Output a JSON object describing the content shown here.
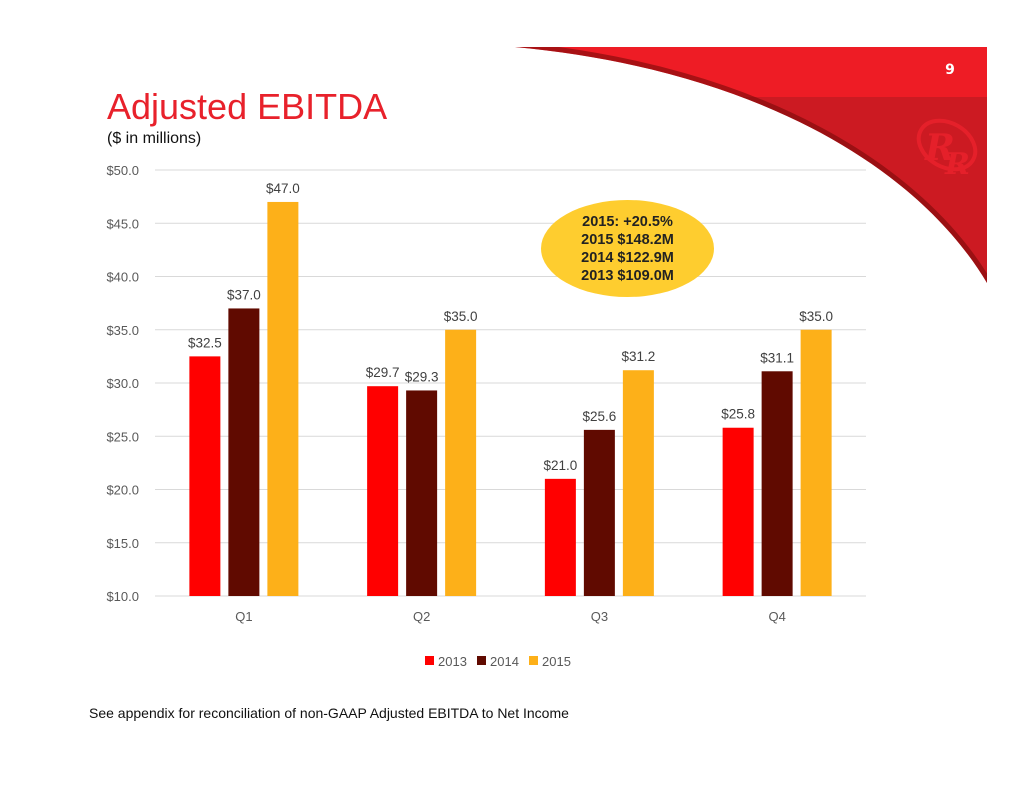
{
  "slide": {
    "page_number": "9",
    "title": "Adjusted EBITDA",
    "subtitle": "($ in millions)",
    "footnote": "See appendix for reconciliation of non-GAAP Adjusted EBITDA to Net Income",
    "logo_text": "RR",
    "callout": [
      "2015: +20.5%",
      "2015 $148.2M",
      "2014 $122.9M",
      "2013 $109.0M"
    ],
    "colors": {
      "brand_red": "#ee1c25",
      "brand_dark_red": "#cc1a22",
      "callout": "#fecd2f"
    }
  },
  "chart_data": {
    "type": "bar",
    "categories": [
      "Q1",
      "Q2",
      "Q3",
      "Q4"
    ],
    "series": [
      {
        "name": "2013",
        "color": "#ff0000",
        "values": [
          32.5,
          29.7,
          21.0,
          25.8
        ],
        "labels": [
          "$32.5",
          "$29.7",
          "$21.0",
          "$25.8"
        ]
      },
      {
        "name": "2014",
        "color": "#600a00",
        "values": [
          37.0,
          29.3,
          25.6,
          31.1
        ],
        "labels": [
          "$37.0",
          "$29.3",
          "$25.6",
          "$31.1"
        ]
      },
      {
        "name": "2015",
        "color": "#fdb019",
        "values": [
          47.0,
          35.0,
          31.2,
          35.0
        ],
        "labels": [
          "$47.0",
          "$35.0",
          "$31.2",
          "$35.0"
        ]
      }
    ],
    "ylim": [
      10,
      50
    ],
    "yticks": [
      "$10.0",
      "$15.0",
      "$20.0",
      "$25.0",
      "$30.0",
      "$35.0",
      "$40.0",
      "$45.0",
      "$50.0"
    ],
    "grid": true,
    "legend": "bottom"
  }
}
